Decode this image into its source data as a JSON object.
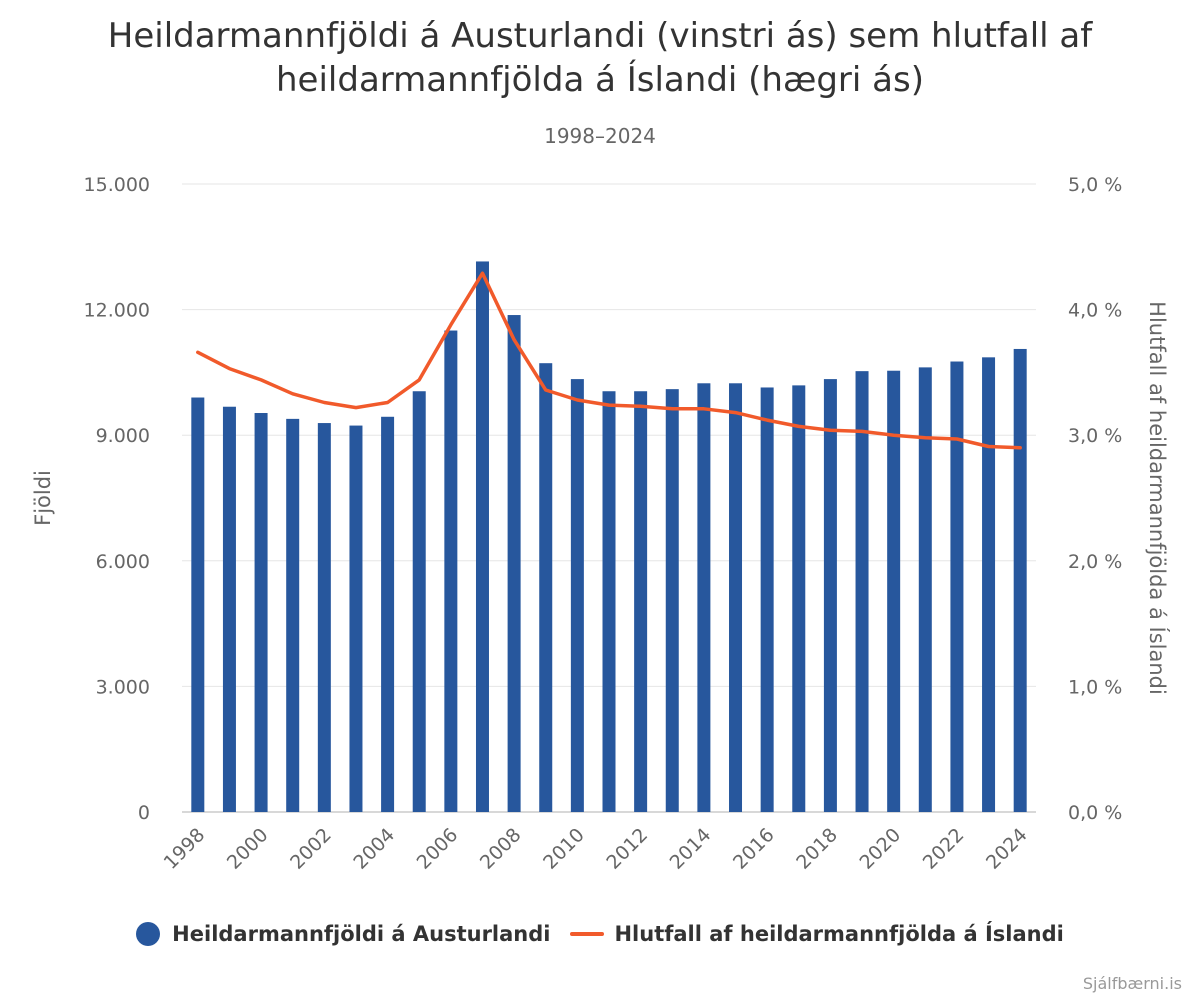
{
  "chart_data": {
    "type": "bar",
    "title": "Heildarmannfjöldi á Austurlandi (vinstri ás) sem hlutfall af heildarmannfjölda á Íslandi (hægri ás)",
    "subtitle": "1998–2024",
    "ylabel": "Fjöldi",
    "y2label": "Hlutfall af heildarmannfjölda á Íslandi",
    "ylim": [
      0,
      15000
    ],
    "y2lim": [
      0,
      5.0
    ],
    "y_ticks": [
      "0",
      "3.000",
      "6.000",
      "9.000",
      "12.000",
      "15.000"
    ],
    "y2_ticks": [
      "0,0 %",
      "1,0 %",
      "2,0 %",
      "3,0 %",
      "4,0 %",
      "5,0 %"
    ],
    "y_tick_values": [
      0,
      3000,
      6000,
      9000,
      12000,
      15000
    ],
    "y2_tick_values": [
      0,
      1,
      2,
      3,
      4,
      5
    ],
    "categories": [
      "1998",
      "1999",
      "2000",
      "2001",
      "2002",
      "2003",
      "2004",
      "2005",
      "2006",
      "2007",
      "2008",
      "2009",
      "2010",
      "2011",
      "2012",
      "2013",
      "2014",
      "2015",
      "2016",
      "2017",
      "2018",
      "2019",
      "2020",
      "2021",
      "2022",
      "2023",
      "2024"
    ],
    "x_tick_labels": [
      "1998",
      "2000",
      "2002",
      "2004",
      "2006",
      "2008",
      "2010",
      "2012",
      "2014",
      "2016",
      "2018",
      "2020",
      "2022",
      "2024"
    ],
    "series": [
      {
        "name": "Heildarmannfjöldi á Austurlandi",
        "type": "bar",
        "axis": "left",
        "color": "#27579d",
        "values": [
          9900,
          9680,
          9530,
          9390,
          9290,
          9230,
          9440,
          10050,
          11500,
          13150,
          11870,
          10720,
          10340,
          10050,
          10050,
          10100,
          10240,
          10240,
          10140,
          10190,
          10340,
          10530,
          10540,
          10620,
          10760,
          10860,
          11060
        ]
      },
      {
        "name": "Hlutfall af heildarmannfjölda á Íslandi",
        "type": "line",
        "axis": "right",
        "color": "#f15a2b",
        "values": [
          3.66,
          3.53,
          3.44,
          3.33,
          3.26,
          3.22,
          3.26,
          3.44,
          3.88,
          4.29,
          3.76,
          3.36,
          3.28,
          3.24,
          3.23,
          3.21,
          3.21,
          3.18,
          3.12,
          3.07,
          3.04,
          3.03,
          3.0,
          2.98,
          2.97,
          2.91,
          2.9
        ]
      }
    ]
  },
  "credit": "Sjálfbærni.is"
}
